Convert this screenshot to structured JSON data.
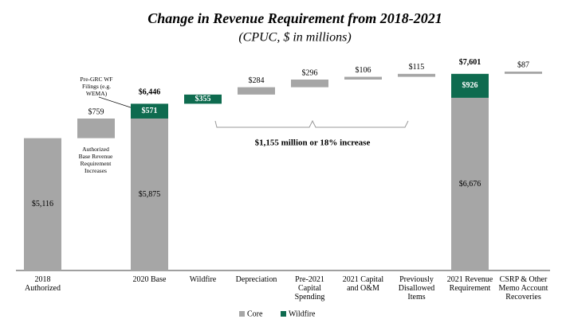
{
  "chart_data": {
    "type": "waterfall",
    "title": "Change in Revenue Requirement from 2018-2021",
    "subtitle": "(CPUC, $ in millions)",
    "categories": [
      "2018 Authorized",
      null,
      "2020 Base",
      "Wildfire",
      "Depreciation",
      "Pre-2021 Capital Spending",
      "2021 Capital and O&M",
      "Previously Disallowed Items",
      "2021 Revenue Requirement",
      "CSRP & Other Memo Account Recoveries"
    ],
    "measure": [
      "absolute",
      "relative",
      "absolute",
      "relative",
      "relative",
      "relative",
      "relative",
      "relative",
      "absolute",
      "relative"
    ],
    "series": [
      {
        "name": "Core",
        "color": "#a6a6a6",
        "values": [
          5116,
          759,
          5875,
          null,
          284,
          296,
          106,
          115,
          6676,
          87
        ],
        "value_labels": [
          "$5,116",
          "$759",
          "$5,875",
          null,
          "$284",
          "$296",
          "$106",
          "$115",
          "$6,676",
          "$87"
        ]
      },
      {
        "name": "Wildfire",
        "color": "#0e6b4f",
        "values": [
          null,
          null,
          571,
          355,
          null,
          null,
          null,
          null,
          926,
          null
        ],
        "value_labels": [
          null,
          null,
          "$571",
          "$355",
          null,
          null,
          null,
          null,
          "$926",
          null
        ]
      }
    ],
    "totals": [
      null,
      null,
      6446,
      null,
      null,
      null,
      null,
      null,
      7601,
      null
    ],
    "total_labels": [
      null,
      null,
      "$6,446",
      null,
      null,
      null,
      null,
      null,
      "$7,601",
      null
    ],
    "annotations": [
      "Pre-GRC WF Filings (e.g. WEMA)",
      "Authorized Base Revenue Requirement Increases",
      "$1,155 million or 18% increase"
    ]
  }
}
